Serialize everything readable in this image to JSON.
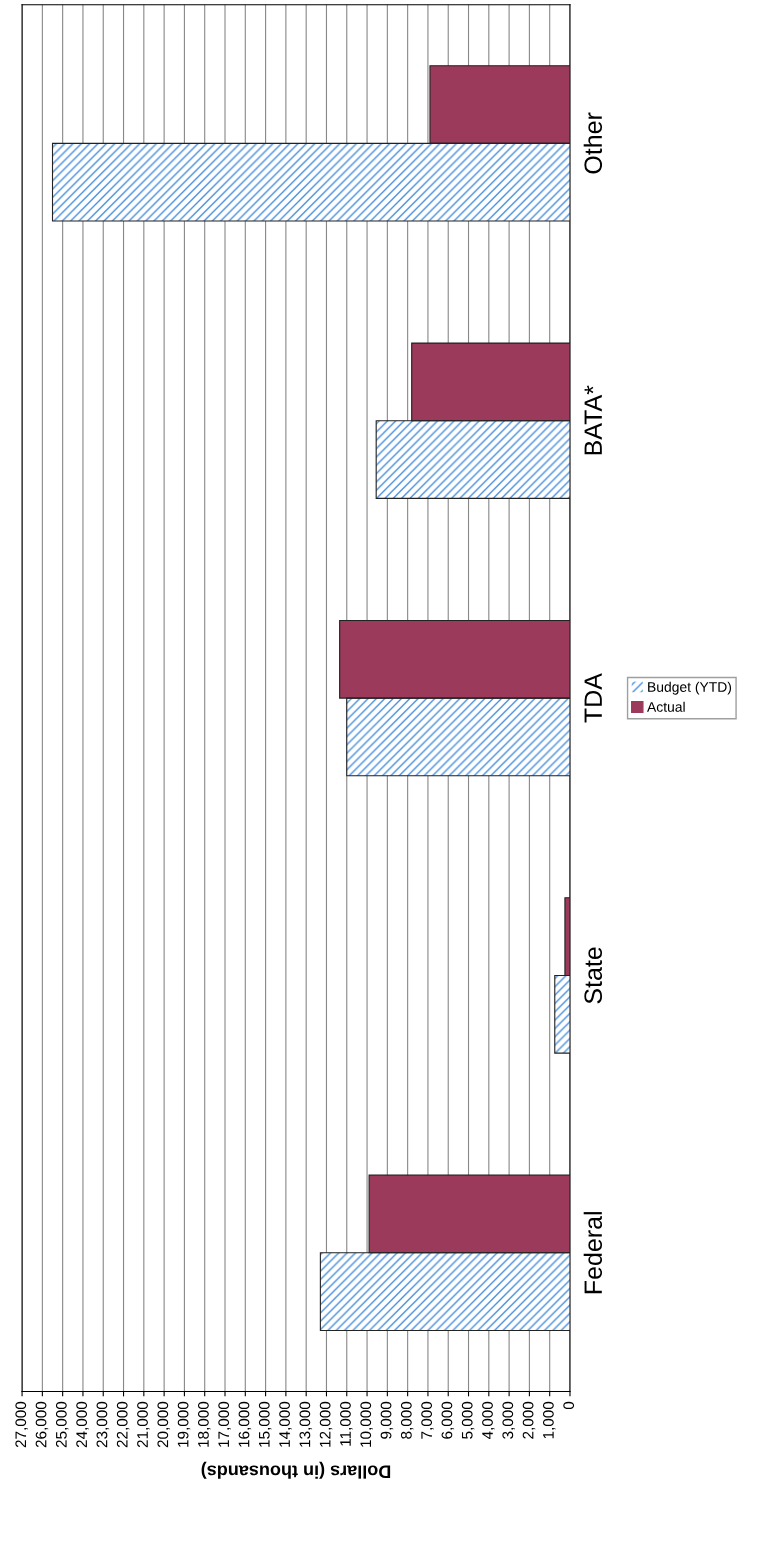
{
  "chart_data": {
    "type": "bar",
    "orientation": "horizontal",
    "xlabel": "Dollars (in thousands)",
    "categories": [
      "Other",
      "BATA*",
      "TDA",
      "State",
      "Federal"
    ],
    "series": [
      {
        "name": "Budget (YTD)",
        "color": "#4a8fdc",
        "values": [
          25500,
          9550,
          11000,
          750,
          12300
        ]
      },
      {
        "name": "Actual",
        "color": "#9b3a5a",
        "values": [
          6900,
          7800,
          11350,
          250,
          9900
        ]
      }
    ],
    "xlim": [
      27000,
      0
    ],
    "xticks": [
      0,
      {
        "value": 1000,
        "label": "1,000"
      },
      {
        "value": 2000,
        "label": "2,000"
      },
      {
        "value": 3000,
        "label": "3,000"
      },
      {
        "value": 4000,
        "label": "4,000"
      },
      {
        "value": 5000,
        "label": "5,000"
      },
      {
        "value": 6000,
        "label": "6,000"
      },
      {
        "value": 7000,
        "label": "7,000"
      },
      {
        "value": 8000,
        "label": "8,000"
      },
      {
        "value": 9000,
        "label": "9,000"
      },
      {
        "value": 10000,
        "label": "10,000"
      },
      {
        "value": 11000,
        "label": "11,000"
      },
      {
        "value": 12000,
        "label": "12,000"
      },
      {
        "value": 13000,
        "label": "13,000"
      },
      {
        "value": 14000,
        "label": "14,000"
      },
      {
        "value": 15000,
        "label": "15,000"
      },
      {
        "value": 16000,
        "label": "16,000"
      },
      {
        "value": 17000,
        "label": "17,000"
      },
      {
        "value": 18000,
        "label": "18,000"
      },
      {
        "value": 19000,
        "label": "19,000"
      },
      {
        "value": 20000,
        "label": "20,000"
      },
      {
        "value": 21000,
        "label": "21,000"
      },
      {
        "value": 22000,
        "label": "22,000"
      },
      {
        "value": 23000,
        "label": "23,000"
      },
      {
        "value": 24000,
        "label": "24,000"
      },
      {
        "value": 25000,
        "label": "25,000"
      },
      {
        "value": 26000,
        "label": "26,000"
      },
      {
        "value": 27000,
        "label": "27,000"
      }
    ],
    "grid": "x",
    "legend": "right"
  }
}
